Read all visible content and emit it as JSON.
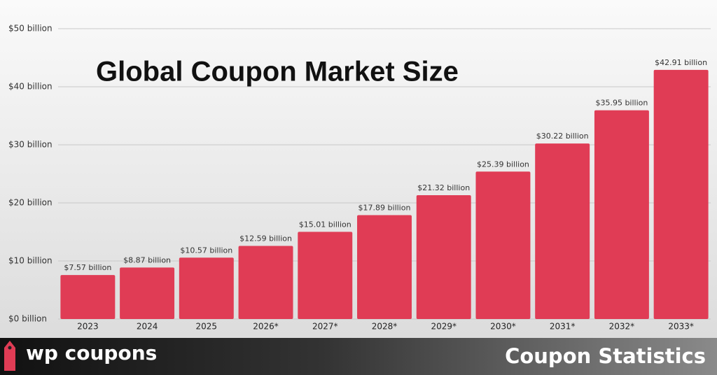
{
  "chart_data": {
    "type": "bar",
    "title": "Global Coupon Market Size",
    "categories": [
      "2023",
      "2024",
      "2025",
      "2026*",
      "2027*",
      "2028*",
      "2029*",
      "2030*",
      "2031*",
      "2032*",
      "2033*"
    ],
    "values": [
      7.57,
      8.87,
      10.57,
      12.59,
      15.01,
      17.89,
      21.32,
      25.39,
      30.22,
      35.95,
      42.91
    ],
    "value_labels": [
      "$7.57 billion",
      "$8.87 billion",
      "$10.57 billion",
      "$12.59 billion",
      "$15.01 billion",
      "$17.89 billion",
      "$21.32 billion",
      "$25.39 billion",
      "$30.22 billion",
      "$35.95 billion",
      "$42.91 billion"
    ],
    "color": "#e03c55",
    "ylim": [
      0,
      50
    ],
    "yticks": [
      {
        "value": 0,
        "label": "$0 billion"
      },
      {
        "value": 10,
        "label": "$10 billion"
      },
      {
        "value": 20,
        "label": "$20 billion"
      },
      {
        "value": 30,
        "label": "$30 billion"
      },
      {
        "value": 40,
        "label": "$40 billion"
      },
      {
        "value": 50,
        "label": "$50 billion"
      }
    ],
    "grid": true
  },
  "footer": {
    "brand": "wp coupons",
    "caption": "Coupon Statistics"
  }
}
